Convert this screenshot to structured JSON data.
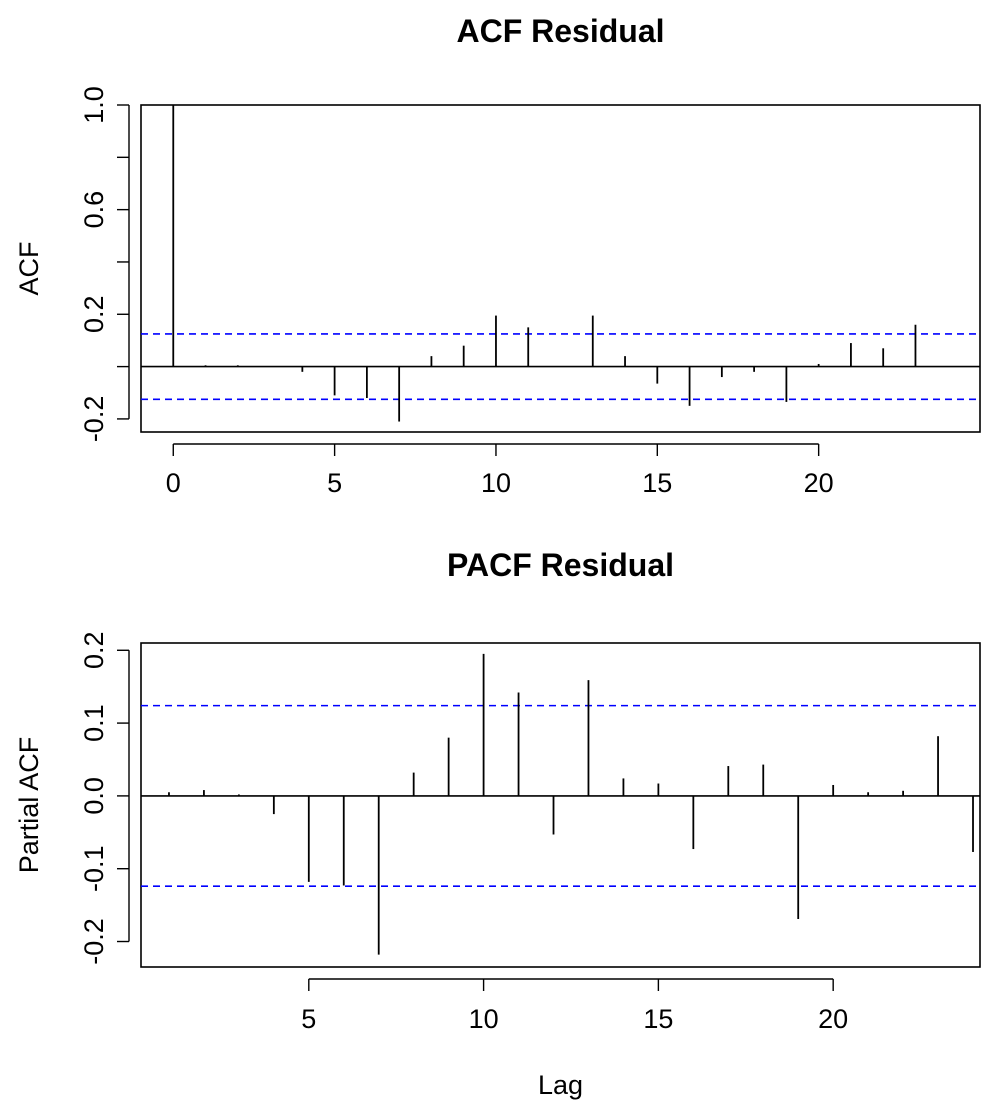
{
  "chart_data": [
    {
      "type": "bar",
      "subtype": "acf",
      "title": "ACF Residual",
      "xlabel": "",
      "ylabel": "ACF",
      "xlim": [
        -1,
        25
      ],
      "ylim": [
        -0.25,
        1.0
      ],
      "xticks": [
        0,
        5,
        10,
        15,
        20
      ],
      "yticks": [
        -0.2,
        0.2,
        0.6,
        1.0
      ],
      "ytick_labels": [
        "-0.2",
        "0.2",
        "0.6",
        "1.0"
      ],
      "lags": [
        0,
        1,
        2,
        3,
        4,
        5,
        6,
        7,
        8,
        9,
        10,
        11,
        12,
        13,
        14,
        15,
        16,
        17,
        18,
        19,
        20,
        21,
        22,
        23
      ],
      "values": [
        1.0,
        0.005,
        0.005,
        0.0,
        -0.02,
        -0.11,
        -0.12,
        -0.21,
        0.04,
        0.08,
        0.195,
        0.15,
        0.0,
        0.195,
        0.04,
        -0.065,
        -0.15,
        -0.04,
        -0.02,
        -0.135,
        0.01,
        0.09,
        0.07,
        0.16
      ],
      "conf_limit": 0.125,
      "conf_color": "#0000ff",
      "grid": false
    },
    {
      "type": "bar",
      "subtype": "pacf",
      "title": "PACF Residual",
      "xlabel": "Lag",
      "ylabel": "Partial ACF",
      "xlim": [
        0.2,
        24.2
      ],
      "ylim": [
        -0.235,
        0.21
      ],
      "xticks": [
        5,
        10,
        15,
        20
      ],
      "yticks": [
        -0.2,
        -0.1,
        0.0,
        0.1,
        0.2
      ],
      "ytick_labels": [
        "-0.2",
        "-0.1",
        "0.0",
        "0.1",
        "0.2"
      ],
      "lags": [
        1,
        2,
        3,
        4,
        5,
        6,
        7,
        8,
        9,
        10,
        11,
        12,
        13,
        14,
        15,
        16,
        17,
        18,
        19,
        20,
        21,
        22,
        23,
        24
      ],
      "values": [
        0.005,
        0.008,
        0.002,
        -0.025,
        -0.118,
        -0.123,
        -0.218,
        0.032,
        0.08,
        0.195,
        0.142,
        -0.053,
        0.159,
        0.024,
        0.017,
        -0.073,
        0.041,
        0.043,
        -0.169,
        0.015,
        0.005,
        0.007,
        0.082,
        -0.077
      ],
      "conf_limit": 0.124,
      "conf_color": "#0000ff",
      "grid": false
    }
  ]
}
